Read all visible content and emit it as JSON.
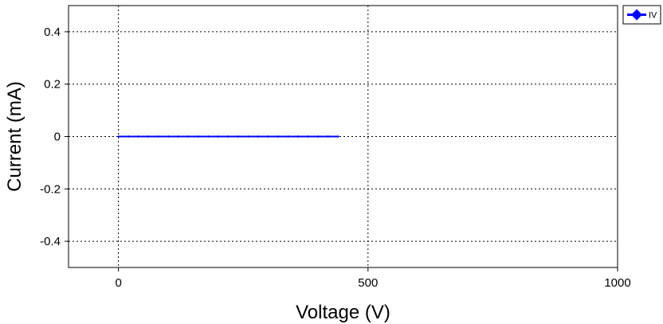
{
  "chart_data": {
    "type": "line",
    "xlabel": "Voltage (V)",
    "ylabel": "Current (mA)",
    "xlim": [
      -100,
      1000
    ],
    "ylim": [
      -0.5,
      0.5
    ],
    "x_ticks": [
      0,
      500,
      1000
    ],
    "y_ticks": [
      -0.4,
      -0.2,
      0,
      0.2,
      0.4
    ],
    "x_tick_labels": [
      "0",
      "500",
      "1000"
    ],
    "y_tick_labels": [
      "-0.4",
      "-0.2",
      "0",
      "0.2",
      "0.4"
    ],
    "grid": true,
    "legend_position": "top-right-outside",
    "series": [
      {
        "name": "IV",
        "color": "#0000ff",
        "marker": "diamond",
        "x": [
          0,
          20,
          40,
          60,
          80,
          100,
          120,
          140,
          160,
          180,
          200,
          220,
          240,
          260,
          280,
          300,
          320,
          340,
          360,
          380,
          400,
          420,
          440
        ],
        "y": [
          0,
          0,
          0,
          0,
          0,
          0,
          0,
          0,
          0,
          0,
          0,
          0,
          0,
          0,
          0,
          0,
          0,
          0,
          0,
          0,
          0,
          0,
          0
        ]
      }
    ]
  }
}
